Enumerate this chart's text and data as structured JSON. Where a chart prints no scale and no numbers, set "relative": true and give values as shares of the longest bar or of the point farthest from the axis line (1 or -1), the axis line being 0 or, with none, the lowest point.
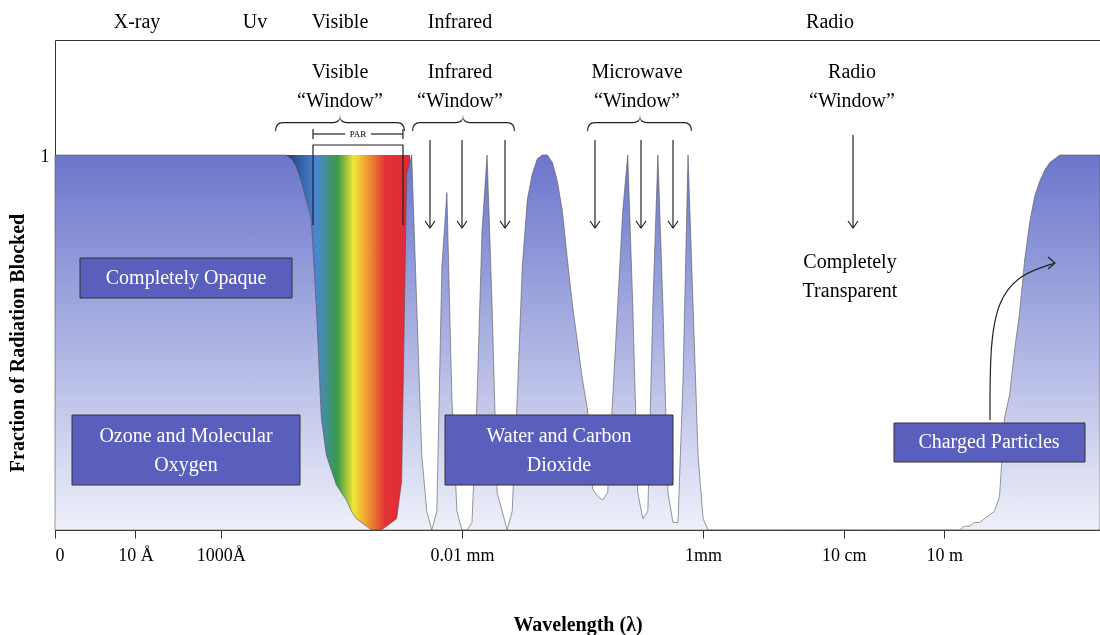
{
  "chart_data": {
    "type": "area",
    "relative": true,
    "xlabel": "Wavelength (λ)",
    "ylabel": "Fraction of Radiation Blocked",
    "categories": [
      "0",
      null,
      null,
      null,
      null,
      null,
      null,
      null,
      null,
      null,
      null,
      null,
      null,
      null,
      null,
      null,
      "10 Å",
      null,
      null,
      null,
      null,
      null,
      null,
      null,
      null,
      null,
      null,
      null,
      null,
      null,
      null,
      null,
      null,
      "1000Å",
      null,
      null,
      null,
      null,
      null,
      null,
      null,
      null,
      null,
      null,
      null,
      null,
      null,
      null,
      null,
      null,
      null,
      null,
      null,
      null,
      null,
      null,
      null,
      null,
      null,
      null,
      null,
      null,
      null,
      null,
      null,
      null,
      null,
      null,
      null,
      null,
      null,
      null,
      null,
      null,
      null,
      null,
      null,
      null,
      null,
      null,
      null,
      "0.01 mm",
      null,
      null,
      null,
      null,
      null,
      null,
      null,
      null,
      null,
      null,
      null,
      null,
      null,
      null,
      null,
      null,
      null,
      null,
      null,
      null,
      null,
      null,
      null,
      null,
      null,
      null,
      null,
      null,
      null,
      null,
      null,
      null,
      null,
      null,
      null,
      null,
      null,
      null,
      null,
      null,
      null,
      null,
      null,
      null,
      null,
      null,
      null,
      "1mm",
      null,
      null,
      null,
      null,
      null,
      null,
      null,
      null,
      null,
      null,
      null,
      null,
      null,
      null,
      null,
      null,
      null,
      null,
      null,
      null,
      null,
      null,
      null,
      null,
      null,
      null,
      null,
      "10 cm",
      null,
      null,
      null,
      null,
      null,
      null,
      null,
      null,
      null,
      null,
      null,
      null,
      null,
      null,
      null,
      null,
      null,
      null,
      null,
      "10 m",
      null,
      null,
      null,
      null,
      null,
      null,
      null,
      null,
      null,
      null,
      null,
      null,
      null,
      null,
      null,
      null,
      null,
      null,
      null,
      null,
      null,
      null,
      null,
      null,
      null,
      null,
      null,
      null,
      null,
      null,
      null
    ],
    "series": [
      {
        "color": "#6b76cb",
        "values": [
          1,
          1,
          1,
          1,
          1,
          1,
          1,
          1,
          1,
          1,
          1,
          1,
          1,
          1,
          1,
          1,
          1,
          1,
          1,
          1,
          1,
          1,
          1,
          1,
          1,
          1,
          1,
          1,
          1,
          1,
          1,
          1,
          1,
          1,
          1,
          1,
          1,
          1,
          1,
          1,
          1,
          1,
          1,
          1,
          1,
          1,
          1,
          0.99,
          0.97,
          0.93,
          0.88,
          0.83,
          0.6,
          0.3,
          0.2,
          0.16,
          0.12,
          0.1,
          0.08,
          0.05,
          0.03,
          0.02,
          0.01,
          0,
          0,
          0,
          0.01,
          0.02,
          0.03,
          0.13,
          0.95,
          1,
          0.6,
          0.2,
          0.05,
          0,
          0.05,
          0.7,
          0.9,
          0.35,
          0.05,
          0,
          0,
          0.02,
          0.35,
          0.8,
          1,
          0.6,
          0.1,
          0.05,
          0,
          0.05,
          0.35,
          0.7,
          0.88,
          0.95,
          0.99,
          1,
          1,
          0.98,
          0.93,
          0.85,
          0.72,
          0.6,
          0.5,
          0.4,
          0.32,
          0.11,
          0.09,
          0.08,
          0.1,
          0.35,
          0.6,
          0.85,
          1,
          0.6,
          0.1,
          0.03,
          0.05,
          0.6,
          1,
          0.6,
          0.1,
          0.02,
          0.02,
          0.4,
          1,
          0.6,
          0.2,
          0.03,
          0,
          0,
          0,
          0,
          0,
          0,
          0,
          0,
          0,
          0,
          0,
          0,
          0,
          0,
          0,
          0,
          0,
          0,
          0,
          0,
          0,
          0,
          0,
          0,
          0,
          0,
          0,
          0,
          0,
          0,
          0,
          0,
          0,
          0,
          0,
          0,
          0,
          0,
          0,
          0,
          0,
          0,
          0,
          0,
          0,
          0,
          0,
          0,
          0,
          0,
          0,
          0.01,
          0.01,
          0.02,
          0.02,
          0.03,
          0.04,
          0.05,
          0.09,
          0.3,
          0.36,
          0.48,
          0.58,
          0.72,
          0.82,
          0.89,
          0.93,
          0.96,
          0.98,
          0.99,
          1,
          1,
          1,
          1,
          1,
          1,
          1,
          1,
          1
        ]
      }
    ],
    "annotations": [
      "X-ray",
      "Uv",
      "Visible",
      "Infrared",
      "Radio",
      "Visible\n“Window”",
      "Infrared\n“Window”",
      "Microwave\n“Window”",
      "Radio\n“Window”",
      "PAR",
      "1",
      "Completely Opaque",
      "Ozone and Molecular\nOxygen",
      "Water and Carbon\nDioxide",
      "Completely\nTransparent",
      "Charged Particles"
    ]
  }
}
